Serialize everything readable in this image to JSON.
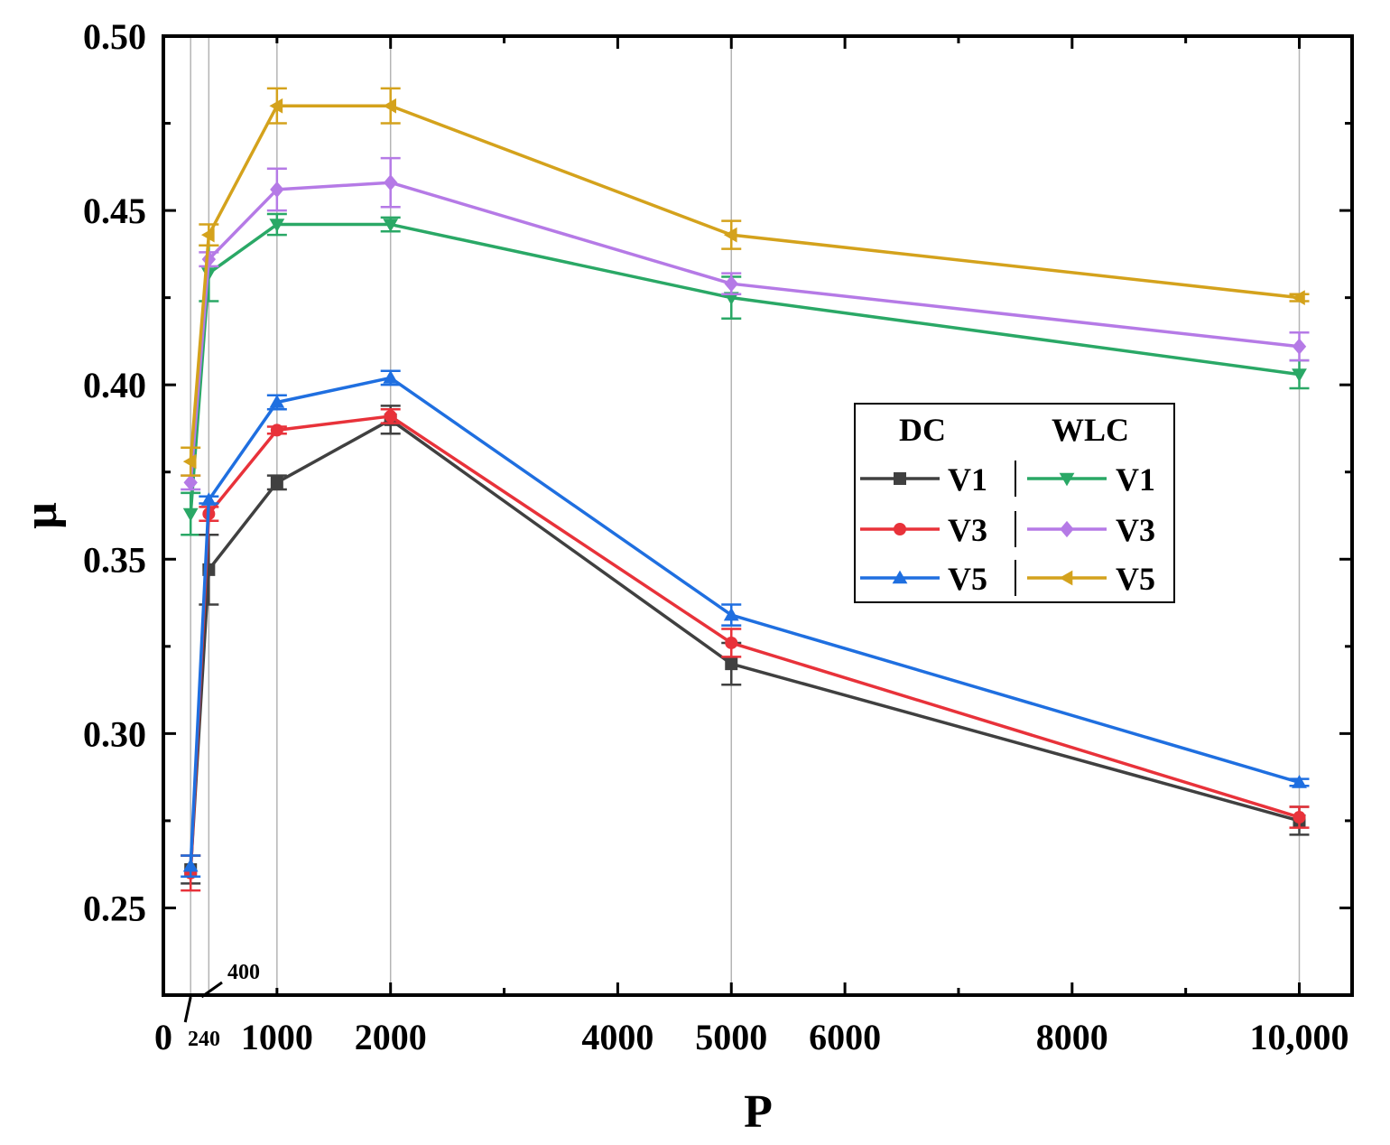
{
  "chart_data": {
    "type": "line",
    "title": "",
    "xlabel": "P",
    "ylabel": "μ",
    "xlim": [
      0,
      10500
    ],
    "ylim": [
      0.225,
      0.5
    ],
    "x": [
      240,
      400,
      1000,
      2000,
      5000,
      10000
    ],
    "x_tick_labels": [
      {
        "value": 0,
        "label": "0"
      },
      {
        "value": 1000,
        "label": "1000"
      },
      {
        "value": 2000,
        "label": "2000"
      },
      {
        "value": 4000,
        "label": "4000"
      },
      {
        "value": 5000,
        "label": "5000"
      },
      {
        "value": 6000,
        "label": "6000"
      },
      {
        "value": 8000,
        "label": "8000"
      },
      {
        "value": 10000,
        "label": "10,000"
      }
    ],
    "x_annotations": [
      {
        "value": 240,
        "label": "240"
      },
      {
        "value": 400,
        "label": "400"
      }
    ],
    "y_ticks": [
      {
        "value": 0.25,
        "label": "0.25"
      },
      {
        "value": 0.3,
        "label": "0.30"
      },
      {
        "value": 0.35,
        "label": "0.35"
      },
      {
        "value": 0.4,
        "label": "0.40"
      },
      {
        "value": 0.45,
        "label": "0.45"
      },
      {
        "value": 0.5,
        "label": "0.50"
      }
    ],
    "vertical_gridlines_at": [
      240,
      400,
      1000,
      2000,
      5000,
      10000
    ],
    "legend": {
      "placement": "center-right",
      "group_headers": [
        "DC",
        "WLC"
      ]
    },
    "series": [
      {
        "name": "V1",
        "group": "DC",
        "color": "#404040",
        "marker": "square",
        "values": [
          0.261,
          0.347,
          0.372,
          0.39,
          0.32,
          0.275
        ],
        "errors": [
          0.004,
          0.01,
          0.002,
          0.004,
          0.006,
          0.004
        ]
      },
      {
        "name": "V3",
        "group": "DC",
        "color": "#e8323a",
        "marker": "circle",
        "values": [
          0.26,
          0.363,
          0.387,
          0.391,
          0.326,
          0.276
        ],
        "errors": [
          0.005,
          0.002,
          0.001,
          0.002,
          0.004,
          0.003
        ]
      },
      {
        "name": "V5",
        "group": "DC",
        "color": "#1f6fe0",
        "marker": "triangle-up",
        "values": [
          0.262,
          0.367,
          0.395,
          0.402,
          0.334,
          0.286
        ],
        "errors": [
          0.003,
          0.001,
          0.002,
          0.002,
          0.003,
          0.001
        ]
      },
      {
        "name": "V1",
        "group": "WLC",
        "color": "#2aa866",
        "marker": "triangle-down",
        "values": [
          0.363,
          0.432,
          0.446,
          0.446,
          0.425,
          0.403
        ],
        "errors": [
          0.006,
          0.008,
          0.003,
          0.002,
          0.006,
          0.004
        ]
      },
      {
        "name": "V3",
        "group": "WLC",
        "color": "#b57ae6",
        "marker": "diamond",
        "values": [
          0.372,
          0.436,
          0.456,
          0.458,
          0.429,
          0.411
        ],
        "errors": [
          0.002,
          0.002,
          0.006,
          0.007,
          0.003,
          0.004
        ]
      },
      {
        "name": "V5",
        "group": "WLC",
        "color": "#d4a21c",
        "marker": "triangle-left",
        "values": [
          0.378,
          0.443,
          0.48,
          0.48,
          0.443,
          0.425
        ],
        "errors": [
          0.004,
          0.003,
          0.005,
          0.005,
          0.004,
          0.001
        ]
      }
    ]
  }
}
